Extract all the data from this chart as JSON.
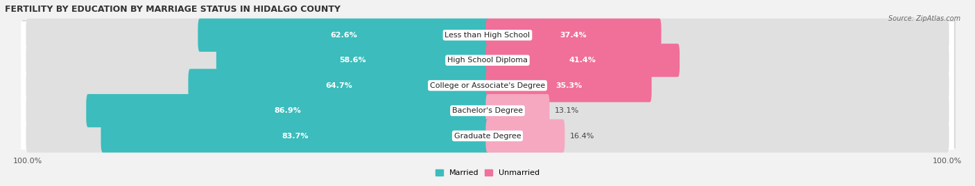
{
  "title": "FERTILITY BY EDUCATION BY MARRIAGE STATUS IN HIDALGO COUNTY",
  "source": "Source: ZipAtlas.com",
  "categories": [
    "Less than High School",
    "High School Diploma",
    "College or Associate's Degree",
    "Bachelor's Degree",
    "Graduate Degree"
  ],
  "married": [
    62.6,
    58.6,
    64.7,
    86.9,
    83.7
  ],
  "unmarried": [
    37.4,
    41.4,
    35.3,
    13.1,
    16.4
  ],
  "married_color": [
    "#3cbcbc",
    "#3cbcbc",
    "#3cbcbc",
    "#3cbcbc",
    "#3cbcbc"
  ],
  "unmarried_color": [
    "#f0709a",
    "#f0709a",
    "#f0709a",
    "#f5a8c0",
    "#f5a8c0"
  ],
  "bg_color": "#f2f2f2",
  "row_bg_color": "#ffffff",
  "row_shadow_color": "#d8d8d8",
  "title_fontsize": 9,
  "label_fontsize": 8,
  "tick_fontsize": 8,
  "legend_fontsize": 8,
  "bar_height": 0.52,
  "xlim_left": -105,
  "xlim_right": 105,
  "total_width": 100
}
